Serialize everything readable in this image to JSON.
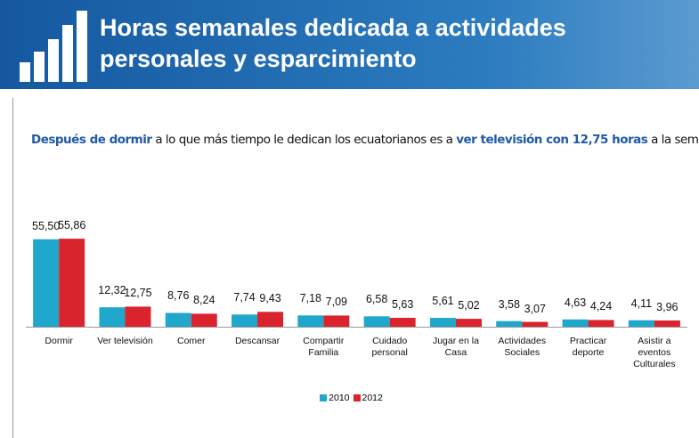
{
  "header": {
    "title_lines": [
      "Horas semanales dedicada a actividades",
      "personales y esparcimiento"
    ]
  },
  "subtitle": [
    {
      "text": "Después de dormir",
      "bold": true
    },
    {
      "text": " a lo que más tiempo le dedican los ecuatorianos es a ",
      "bold": false
    },
    {
      "text": "ver televisión con 12,75 horas",
      "bold": true
    },
    {
      "text": " a la semana.",
      "bold": false
    }
  ],
  "chart_data": {
    "type": "bar",
    "categories": [
      "Dormir",
      "Ver televisión",
      "Comer",
      "Descansar",
      "Compartir Familia",
      "Cuidado personal",
      "Jugar en la Casa",
      "Actividades Sociales",
      "Practicar deporte",
      "Asistir a eventos Culturales"
    ],
    "series": [
      {
        "name": "2010",
        "color": "#1fa8cb",
        "values": [
          55.5,
          12.32,
          8.76,
          7.74,
          7.18,
          6.58,
          5.61,
          3.58,
          4.63,
          4.11
        ],
        "value_labels": [
          "55,50",
          "12,32",
          "8,76",
          "7,74",
          "7,18",
          "6,58",
          "5,61",
          "3,58",
          "4,63",
          "4,11"
        ]
      },
      {
        "name": "2012",
        "color": "#d9232d",
        "values": [
          55.86,
          12.75,
          8.24,
          9.43,
          7.09,
          5.63,
          5.02,
          3.07,
          4.24,
          3.96
        ],
        "value_labels": [
          "55,86",
          "12,75",
          "8,24",
          "9,43",
          "7,09",
          "5,63",
          "5,02",
          "3,07",
          "4,24",
          "3,96"
        ]
      }
    ],
    "legend": "bottom"
  }
}
